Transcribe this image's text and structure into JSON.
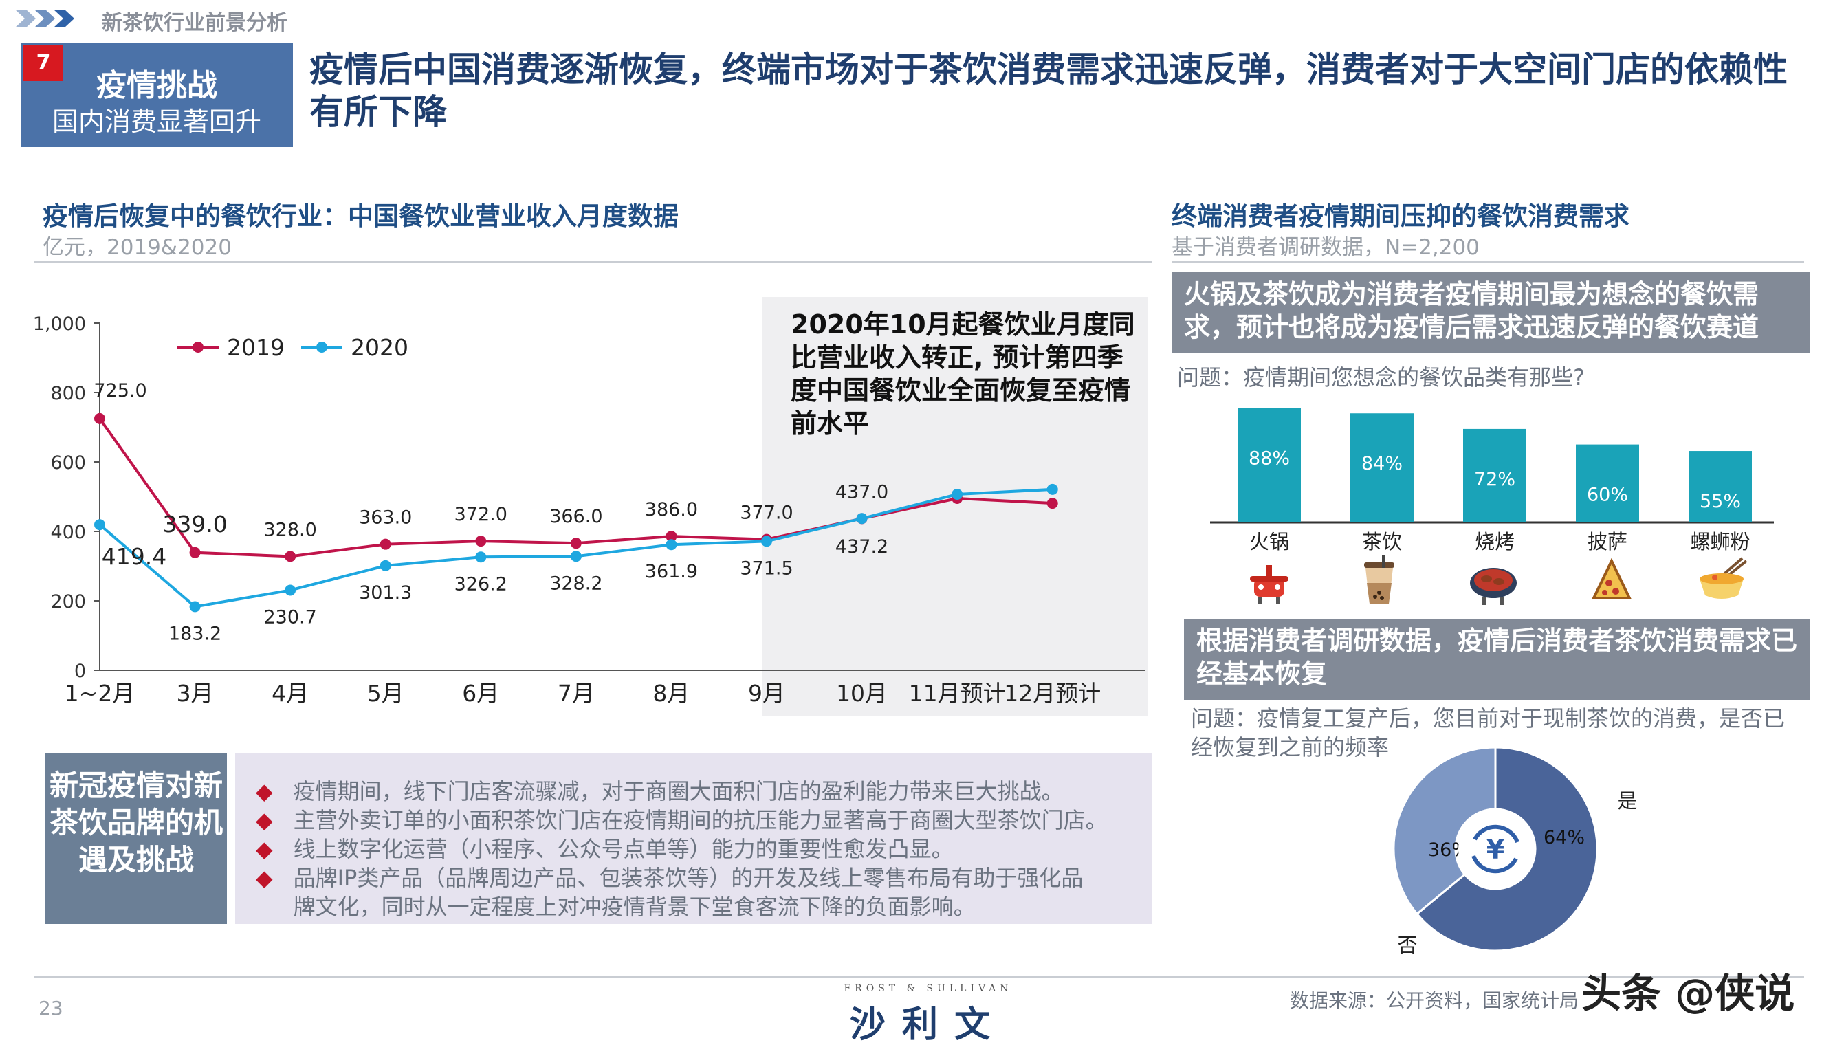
{
  "header": {
    "topbar_title": "新茶饮行业前景分析",
    "section_number": "7",
    "section_title": "疫情挑战",
    "section_subtitle": "国内消费显著回升",
    "headline": "疫情后中国消费逐渐恢复，终端市场对于茶饮消费需求迅速反弹，消费者对于大空间门店的依赖性有所下降"
  },
  "left_chart": {
    "title": "疫情后恢复中的餐饮行业：中国餐饮业营业收入月度数据",
    "unit": "亿元，2019&2020",
    "note": "2020年10月起餐饮业月度同比营业收入转正, 预计第四季度中国餐饮业全面恢复至疫情前水平"
  },
  "chart_data": [
    {
      "type": "line",
      "categories": [
        "1~2月",
        "3月",
        "4月",
        "5月",
        "6月",
        "7月",
        "8月",
        "9月",
        "10月",
        "11月预计",
        "12月预计"
      ],
      "series": [
        {
          "name": "2019",
          "color": "#c0144a",
          "values": [
            725.0,
            339.0,
            328.0,
            363.0,
            372.0,
            366.0,
            386.0,
            377.0,
            437.0,
            495,
            481
          ]
        },
        {
          "name": "2020",
          "color": "#1ea7e0",
          "values": [
            419.4,
            183.2,
            230.7,
            301.3,
            326.2,
            328.2,
            361.9,
            371.5,
            437.2,
            507,
            521
          ]
        }
      ],
      "data_labels": {
        "2019": [
          "725.0",
          "339.0",
          "328.0",
          "363.0",
          "372.0",
          "366.0",
          "386.0",
          "377.0",
          "437.0"
        ],
        "2020": [
          "419.4",
          "183.2",
          "230.7",
          "301.3",
          "326.2",
          "328.2",
          "361.9",
          "371.5",
          "437.2"
        ]
      },
      "yticks": [
        "0",
        "200",
        "400",
        "600",
        "800",
        "1,000"
      ],
      "ylim": [
        0,
        1000
      ],
      "legend_placement": "top-left"
    },
    {
      "type": "bar",
      "categories": [
        "火锅",
        "茶饮",
        "烧烤",
        "披萨",
        "螺蛳粉"
      ],
      "values": [
        88,
        84,
        72,
        60,
        55
      ],
      "labels": [
        "88%",
        "84%",
        "72%",
        "60%",
        "55%"
      ],
      "color": "#1aa3b8",
      "ylim": [
        0,
        100
      ]
    },
    {
      "type": "pie",
      "slices": [
        {
          "label": "是",
          "value": 64,
          "text": "64%",
          "color": "#4a6499"
        },
        {
          "label": "否",
          "value": 36,
          "text": "36%",
          "color": "#7d97c4"
        }
      ],
      "center_icon": "yuan-refresh-icon"
    }
  ],
  "impact": {
    "title": "新冠疫情对新茶饮品牌的机遇及挑战",
    "bullets": [
      "疫情期间，线下门店客流骤减，对于商圈大面积门店的盈利能力带来巨大挑战。",
      "主营外卖订单的小面积茶饮门店在疫情期间的抗压能力显著高于商圈大型茶饮门店。",
      "线上数字化运营（小程序、公众号点单等）能力的重要性愈发凸显。",
      "品牌IP类产品（品牌周边产品、包装茶饮等）的开发及线上零售布局有助于强化品",
      "牌文化，同时从一定程度上对冲疫情背景下堂食客流下降的负面影响。"
    ]
  },
  "right_panel": {
    "title": "终端消费者疫情期间压抑的餐饮消费需求",
    "subtitle": "基于消费者调研数据，N=2,200",
    "callout1": "火锅及茶饮成为消费者疫情期间最为想念的餐饮需求，预计也将成为疫情后需求迅速反弹的餐饮赛道",
    "question1": "问题：疫情期间您想念的餐饮品类有那些?",
    "callout2": "根据消费者调研数据，疫情后消费者茶饮消费需求已经基本恢复",
    "question2": "问题：疫情复工复产后，您目前对于现制茶饮的消费，是否已经恢复到之前的频率",
    "icons": [
      "hotpot-icon",
      "milk-tea-icon",
      "bbq-icon",
      "pizza-icon",
      "noodle-bowl-icon"
    ]
  },
  "footer": {
    "page_number": "23",
    "brand_small": "FROST & SULLIVAN",
    "brand_big": "沙利文",
    "source": "数据来源：公开资料，国家统计局",
    "watermark": "头条 @侠说"
  }
}
